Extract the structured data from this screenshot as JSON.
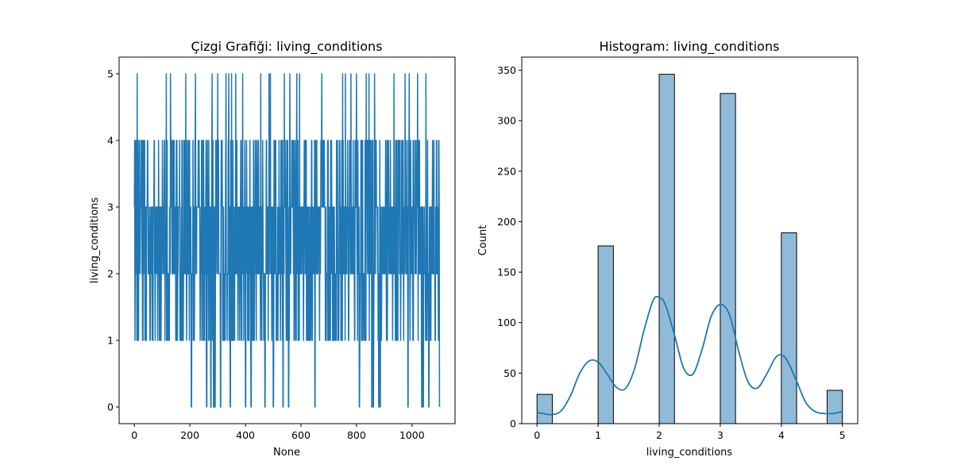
{
  "chart_data": [
    {
      "type": "line",
      "title": "Çizgi Grafiği: living_conditions",
      "xlabel": "None",
      "ylabel": "living_conditions",
      "xlim": [
        -55,
        1155
      ],
      "ylim": [
        -0.25,
        5.25
      ],
      "x_ticks": [
        0,
        200,
        400,
        600,
        800,
        1000
      ],
      "y_ticks": [
        0,
        1,
        2,
        3,
        4,
        5
      ],
      "grid": false,
      "series": [
        {
          "color": "#1f77b4",
          "n_points": 1100,
          "x_start": 0,
          "x_end": 1099,
          "y_min": 0,
          "y_max": 5,
          "level_counts": {
            "0": 29,
            "1": 176,
            "2": 346,
            "3": 327,
            "4": 189,
            "5": 33
          },
          "zero_spike_x": [
            205,
            260,
            275,
            285,
            290,
            310,
            345,
            400,
            420,
            470,
            500,
            535,
            555,
            650,
            810,
            855,
            860,
            880,
            885,
            985,
            1035,
            1040,
            1060
          ],
          "five_spike_x": [
            10,
            115,
            130,
            185,
            220,
            280,
            290,
            300,
            330,
            340,
            350,
            365,
            390,
            455,
            470,
            485,
            490,
            500,
            540,
            560,
            585,
            595,
            675,
            750,
            760,
            780,
            800,
            835,
            845,
            855,
            865,
            885,
            935,
            975,
            990,
            1020,
            1050,
            1060
          ]
        }
      ]
    },
    {
      "type": "bar",
      "title": "Histogram: living_conditions",
      "xlabel": "living_conditions",
      "ylabel": "Count",
      "xlim": [
        -0.25,
        5.25
      ],
      "ylim": [
        0,
        363
      ],
      "x_ticks": [
        0,
        1,
        2,
        3,
        4,
        5
      ],
      "y_ticks": [
        0,
        50,
        100,
        150,
        200,
        250,
        300,
        350
      ],
      "grid": false,
      "bar_color": "#1f77b4",
      "bin_width": 0.25,
      "categories": [
        0,
        1,
        2,
        3,
        4,
        5
      ],
      "values": [
        29,
        176,
        346,
        327,
        189,
        33
      ],
      "kde": {
        "color": "#1f77b4",
        "x": [
          0,
          0.1,
          0.25,
          0.4,
          0.55,
          0.7,
          0.85,
          1.0,
          1.15,
          1.3,
          1.45,
          1.6,
          1.75,
          1.9,
          2.0,
          2.1,
          2.25,
          2.4,
          2.55,
          2.7,
          2.85,
          3.0,
          3.15,
          3.3,
          3.45,
          3.6,
          3.75,
          3.9,
          4.0,
          4.1,
          4.25,
          4.4,
          4.55,
          4.7,
          4.85,
          5.0
        ],
        "y": [
          11,
          10,
          9,
          13,
          28,
          50,
          62,
          61,
          49,
          36,
          35,
          55,
          92,
          122,
          125,
          118,
          88,
          55,
          49,
          73,
          106,
          118,
          108,
          72,
          42,
          35,
          48,
          65,
          68,
          62,
          42,
          21,
          12,
          10,
          10,
          12
        ]
      }
    }
  ]
}
